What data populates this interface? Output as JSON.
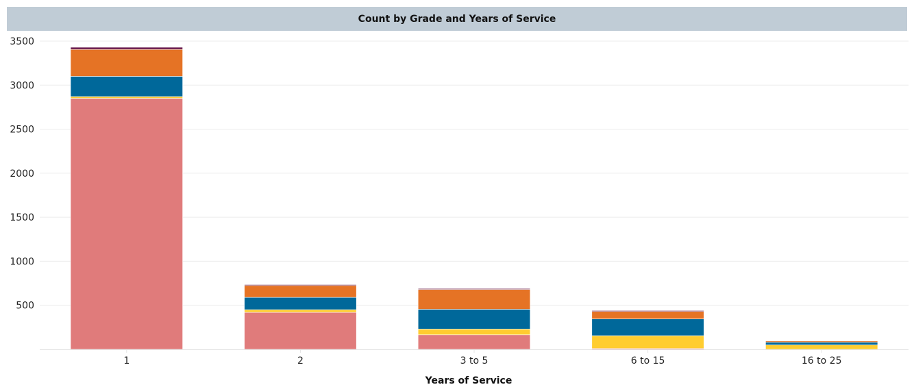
{
  "chart_data": {
    "type": "bar",
    "stacked": true,
    "title": "Count by Grade and Years of Service",
    "xlabel": "Years of Service",
    "ylabel": "",
    "categories": [
      "1",
      "2",
      "3 to 5",
      "6 to 15",
      "16 to 25"
    ],
    "y_ticks": [
      500,
      1000,
      1500,
      2000,
      2500,
      3000,
      3500
    ],
    "ylim": [
      0,
      3500
    ],
    "grid": true,
    "legend": "none",
    "series": [
      {
        "color": "#e07b7b",
        "values": [
          2850,
          420,
          165,
          10,
          0
        ]
      },
      {
        "color": "#ffcd30",
        "values": [
          20,
          30,
          65,
          145,
          50
        ]
      },
      {
        "color": "#00689a",
        "values": [
          230,
          140,
          225,
          190,
          30
        ]
      },
      {
        "color": "#e57325",
        "values": [
          305,
          135,
          225,
          85,
          15
        ]
      },
      {
        "color": "#6a1b4d",
        "values": [
          25,
          10,
          10,
          10,
          5
        ]
      }
    ]
  }
}
